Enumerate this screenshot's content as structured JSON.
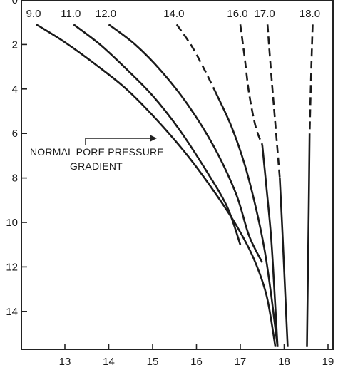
{
  "chart_data": {
    "type": "line",
    "title": "",
    "xlabel": "",
    "ylabel": "",
    "xlim": [
      12,
      19
    ],
    "ylim": [
      0,
      15.8
    ],
    "y_inverted": true,
    "grid": false,
    "x_ticks": [
      {
        "value": 13,
        "label": "13"
      },
      {
        "value": 14,
        "label": "14"
      },
      {
        "value": 15,
        "label": "15"
      },
      {
        "value": 16,
        "label": "16"
      },
      {
        "value": 17,
        "label": "17"
      },
      {
        "value": 18,
        "label": "18"
      },
      {
        "value": 19,
        "label": "19"
      }
    ],
    "y_ticks": [
      {
        "value": 0,
        "label": "0"
      },
      {
        "value": 2,
        "label": "2"
      },
      {
        "value": 4,
        "label": "4"
      },
      {
        "value": 6,
        "label": "6"
      },
      {
        "value": 8,
        "label": "8"
      },
      {
        "value": 10,
        "label": "10"
      },
      {
        "value": 12,
        "label": "12"
      },
      {
        "value": 14,
        "label": "14"
      }
    ],
    "series": [
      {
        "name": "9.0",
        "style": "solid",
        "points": [
          [
            12.35,
            1.1
          ],
          [
            13.0,
            1.9
          ],
          [
            13.7,
            2.9
          ],
          [
            14.4,
            4.0
          ],
          [
            15.1,
            5.4
          ],
          [
            15.8,
            7.0
          ],
          [
            16.4,
            8.6
          ],
          [
            16.9,
            10.1
          ],
          [
            17.3,
            11.6
          ],
          [
            17.6,
            13.3
          ],
          [
            17.8,
            15.6
          ]
        ]
      },
      {
        "name": "11.0",
        "style": "solid",
        "points": [
          [
            13.2,
            1.1
          ],
          [
            13.8,
            2.0
          ],
          [
            14.4,
            3.1
          ],
          [
            15.0,
            4.3
          ],
          [
            15.6,
            5.8
          ],
          [
            16.2,
            7.6
          ],
          [
            16.7,
            9.3
          ],
          [
            17.0,
            11.0
          ]
        ]
      },
      {
        "name": "12.0",
        "style": "solid",
        "points": [
          [
            14.0,
            1.1
          ],
          [
            14.6,
            2.0
          ],
          [
            15.2,
            3.2
          ],
          [
            15.8,
            4.7
          ],
          [
            16.4,
            6.6
          ],
          [
            16.9,
            8.7
          ],
          [
            17.2,
            10.6
          ],
          [
            17.5,
            11.8
          ]
        ]
      },
      {
        "name": "14.0",
        "style": "mixed",
        "dashed_until_y": 4.2,
        "points": [
          [
            15.55,
            1.1
          ],
          [
            15.9,
            2.1
          ],
          [
            16.2,
            3.2
          ],
          [
            16.45,
            4.2
          ],
          [
            16.8,
            5.7
          ],
          [
            17.1,
            7.4
          ],
          [
            17.35,
            9.3
          ],
          [
            17.55,
            11.2
          ],
          [
            17.7,
            13.2
          ],
          [
            17.85,
            15.6
          ]
        ]
      },
      {
        "name": "16.0",
        "style": "mixed",
        "dashed_until_y": 6.5,
        "points": [
          [
            17.0,
            1.1
          ],
          [
            17.1,
            2.6
          ],
          [
            17.2,
            4.2
          ],
          [
            17.35,
            5.7
          ],
          [
            17.5,
            6.5
          ],
          [
            17.6,
            8.5
          ],
          [
            17.7,
            10.6
          ],
          [
            17.77,
            12.8
          ],
          [
            17.85,
            15.6
          ]
        ]
      },
      {
        "name": "17.0",
        "style": "mixed",
        "dashed_until_y": 8.0,
        "points": [
          [
            17.62,
            1.1
          ],
          [
            17.7,
            3.2
          ],
          [
            17.8,
            5.6
          ],
          [
            17.9,
            8.0
          ],
          [
            17.96,
            10.4
          ],
          [
            18.02,
            13.0
          ],
          [
            18.08,
            15.6
          ]
        ]
      },
      {
        "name": "18.0",
        "style": "mixed",
        "dashed_until_y": 6.0,
        "points": [
          [
            18.65,
            1.1
          ],
          [
            18.62,
            3.0
          ],
          [
            18.58,
            6.0
          ],
          [
            18.56,
            9.5
          ],
          [
            18.54,
            12.5
          ],
          [
            18.52,
            15.6
          ]
        ]
      }
    ],
    "annotations": [
      {
        "text_lines": [
          "NORMAL PORE PRESSURE",
          "GRADIENT"
        ],
        "has_arrow": true
      }
    ]
  }
}
